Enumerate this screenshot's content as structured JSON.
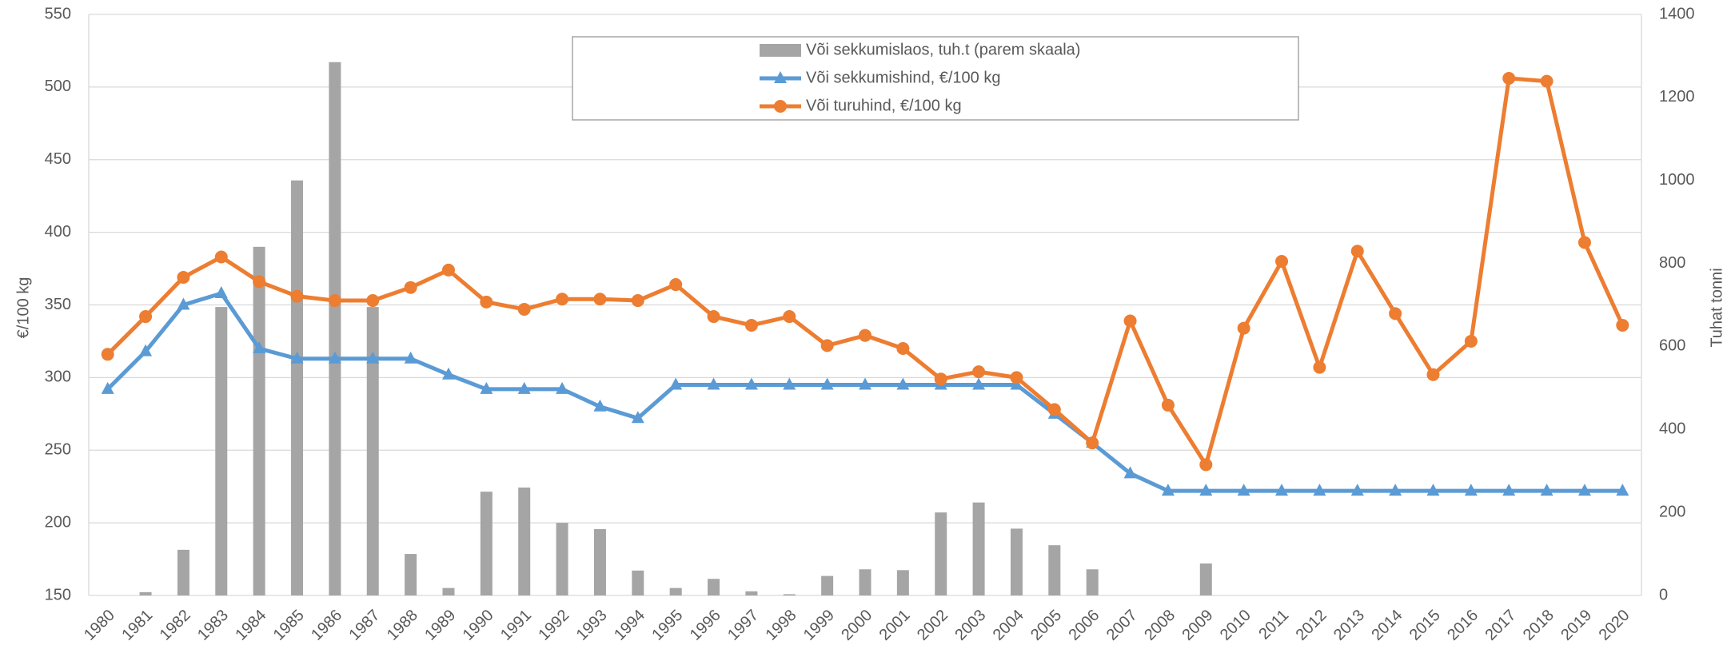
{
  "chart_data": {
    "type": "bar_line",
    "y_label": "€/100 kg",
    "y2_label": "Tuhat tonni",
    "categories": [
      "1980",
      "1981",
      "1982",
      "1983",
      "1984",
      "1985",
      "1986",
      "1987",
      "1988",
      "1989",
      "1990",
      "1991",
      "1992",
      "1993",
      "1994",
      "1995",
      "1996",
      "1997",
      "1998",
      "1999",
      "2000",
      "2001",
      "2002",
      "2003",
      "2004",
      "2005",
      "2006",
      "2007",
      "2008",
      "2009",
      "2010",
      "2011",
      "2012",
      "2013",
      "2014",
      "2015",
      "2016",
      "2017",
      "2018",
      "2019",
      "2020"
    ],
    "series": [
      {
        "name": "Või sekkumislaos, tuh.t (parem skaala)",
        "type": "bar",
        "axis": "y2",
        "color": "#a5a5a5",
        "values": [
          0,
          8,
          110,
          695,
          840,
          1000,
          1285,
          695,
          100,
          18,
          250,
          260,
          175,
          160,
          60,
          18,
          40,
          10,
          3,
          47,
          63,
          61,
          200,
          224,
          161,
          121,
          63,
          0,
          0,
          77,
          0,
          0,
          0,
          0,
          0,
          0,
          0,
          0,
          0,
          0,
          0
        ]
      },
      {
        "name": "Või sekkumishind, €/100 kg",
        "type": "line",
        "marker": "triangle",
        "color": "#5b9bd5",
        "values": [
          292,
          318,
          350,
          358,
          320,
          313,
          313,
          313,
          313,
          302,
          292,
          292,
          292,
          280,
          272,
          295,
          295,
          295,
          295,
          295,
          295,
          295,
          295,
          295,
          295,
          275,
          255,
          234,
          222,
          222,
          222,
          222,
          222,
          222,
          222,
          222,
          222,
          222,
          222,
          222,
          222
        ]
      },
      {
        "name": "Või turuhind, €/100 kg",
        "type": "line",
        "marker": "circle",
        "color": "#ed7d31",
        "values": [
          316,
          342,
          369,
          383,
          366,
          356,
          353,
          353,
          362,
          374,
          352,
          347,
          354,
          354,
          353,
          364,
          342,
          336,
          342,
          322,
          329,
          320,
          299,
          304,
          300,
          278,
          255,
          339,
          281,
          240,
          334,
          380,
          307,
          387,
          344,
          302,
          325,
          506,
          504,
          393,
          336
        ]
      }
    ],
    "ylim": [
      150,
      550
    ],
    "yticks": [
      150,
      200,
      250,
      300,
      350,
      400,
      450,
      500,
      550
    ],
    "y2lim": [
      0,
      1400
    ],
    "y2ticks": [
      0,
      200,
      400,
      600,
      800,
      1000,
      1200,
      1400
    ],
    "grid": true
  }
}
